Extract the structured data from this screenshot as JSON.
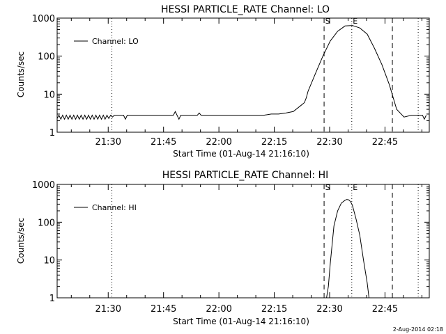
{
  "footer_date": "2-Aug-2014 02:18",
  "chart_data": [
    {
      "type": "line",
      "title": "HESSI PARTICLE_RATE Channel: LO",
      "xlabel": "Start Time (01-Aug-14 21:16:10)",
      "ylabel": "Counts/sec",
      "x_unit": "minutes after 21:16:10 (time of day)",
      "xlim": [
        "21:16:10",
        "22:57:00"
      ],
      "x_ticks": [
        "21:30",
        "21:45",
        "22:00",
        "22:15",
        "22:30",
        "22:45"
      ],
      "y_scale": "log",
      "ylim": [
        1,
        1000
      ],
      "y_ticks": [
        "1",
        "10",
        "100",
        "1000"
      ],
      "legend": {
        "position": "top-left",
        "entries": [
          "Channel: LO"
        ]
      },
      "markers": [
        {
          "label": "S",
          "time": "22:28:30",
          "style": "dashed"
        },
        {
          "label": "E",
          "time": "22:36:00",
          "style": "dotted"
        }
      ],
      "vertical_lines": [
        {
          "time": "21:31:00",
          "style": "dotted"
        },
        {
          "time": "22:28:30",
          "style": "dashed"
        },
        {
          "time": "22:36:00",
          "style": "dotted"
        },
        {
          "time": "22:47:00",
          "style": "dashed"
        },
        {
          "time": "22:54:00",
          "style": "dotted"
        }
      ],
      "series": [
        {
          "name": "Channel: LO",
          "x": [
            0,
            0.5,
            1,
            1.5,
            2,
            2.5,
            3,
            3.5,
            4,
            4.5,
            5,
            5.5,
            6,
            6.5,
            7,
            7.5,
            8,
            8.5,
            9,
            9.5,
            10,
            10.5,
            11,
            11.5,
            12,
            12.5,
            13,
            13.5,
            14,
            14.5,
            15,
            15.5,
            16,
            16.5,
            17,
            17.5,
            18,
            18.5,
            19,
            19.5,
            20,
            22,
            24,
            26,
            28,
            30,
            31.5,
            32,
            33,
            33.5,
            34,
            36,
            38,
            38.5,
            39,
            40,
            42,
            44,
            46,
            48,
            50,
            52,
            54,
            56,
            58,
            60,
            62,
            64,
            66,
            67,
            67.5,
            68,
            70,
            72,
            74,
            76,
            78,
            80,
            82,
            84,
            86,
            88,
            90,
            92,
            94,
            96,
            98,
            99,
            99.5,
            100
          ],
          "y": [
            2.3,
            2.8,
            2.2,
            2.8,
            2.2,
            2.8,
            2.2,
            2.8,
            2.2,
            2.8,
            2.2,
            2.8,
            2.2,
            2.8,
            2.2,
            2.8,
            2.2,
            2.8,
            2.2,
            2.8,
            2.2,
            2.8,
            2.2,
            2.8,
            2.2,
            2.8,
            2.2,
            2.8,
            2.3,
            2.8,
            2.5,
            2.8,
            2.8,
            2.8,
            2.8,
            2.8,
            2.8,
            2.2,
            2.8,
            2.8,
            2.8,
            2.8,
            2.8,
            2.8,
            2.8,
            2.8,
            2.8,
            3.5,
            2.2,
            2.8,
            2.8,
            2.8,
            2.8,
            3.2,
            2.8,
            2.8,
            2.8,
            2.8,
            2.8,
            2.8,
            2.8,
            2.8,
            2.8,
            2.8,
            3.0,
            3.0,
            3.2,
            3.5,
            5.0,
            6.0,
            8.0,
            12,
            35,
            100,
            250,
            450,
            620,
            640,
            550,
            380,
            160,
            60,
            18,
            4,
            2.5,
            2.8,
            2.8,
            2.8,
            2.2,
            2.8
          ]
        }
      ]
    },
    {
      "type": "line",
      "title": "HESSI PARTICLE_RATE Channel: HI",
      "xlabel": "Start Time (01-Aug-14 21:16:10)",
      "ylabel": "Counts/sec",
      "x_unit": "minutes after 21:16:10 (time of day)",
      "xlim": [
        "21:16:10",
        "22:57:00"
      ],
      "x_ticks": [
        "21:30",
        "21:45",
        "22:00",
        "22:15",
        "22:30",
        "22:45"
      ],
      "y_scale": "log",
      "ylim": [
        1,
        1000
      ],
      "y_ticks": [
        "1",
        "10",
        "100",
        "1000"
      ],
      "legend": {
        "position": "top-left",
        "entries": [
          "Channel: HI"
        ]
      },
      "markers": [
        {
          "label": "S",
          "time": "22:28:30",
          "style": "dashed"
        },
        {
          "label": "E",
          "time": "22:36:00",
          "style": "dotted"
        }
      ],
      "vertical_lines": [
        {
          "time": "21:31:00",
          "style": "dotted"
        },
        {
          "time": "22:28:30",
          "style": "dashed"
        },
        {
          "time": "22:36:00",
          "style": "dotted"
        },
        {
          "time": "22:47:00",
          "style": "dashed"
        },
        {
          "time": "22:54:00",
          "style": "dotted"
        }
      ],
      "series": [
        {
          "name": "Channel: HI",
          "x": [
            73.0,
            73.5,
            74.0,
            75.0,
            76.0,
            77.0,
            78.0,
            78.5,
            79.0,
            79.5,
            80.0,
            81.0,
            82.0,
            83.0,
            84.0,
            84.5
          ],
          "y": [
            1.0,
            2.0,
            8.0,
            80,
            200,
            320,
            380,
            400,
            390,
            350,
            280,
            120,
            45,
            10,
            2.5,
            1.0
          ]
        }
      ]
    }
  ]
}
